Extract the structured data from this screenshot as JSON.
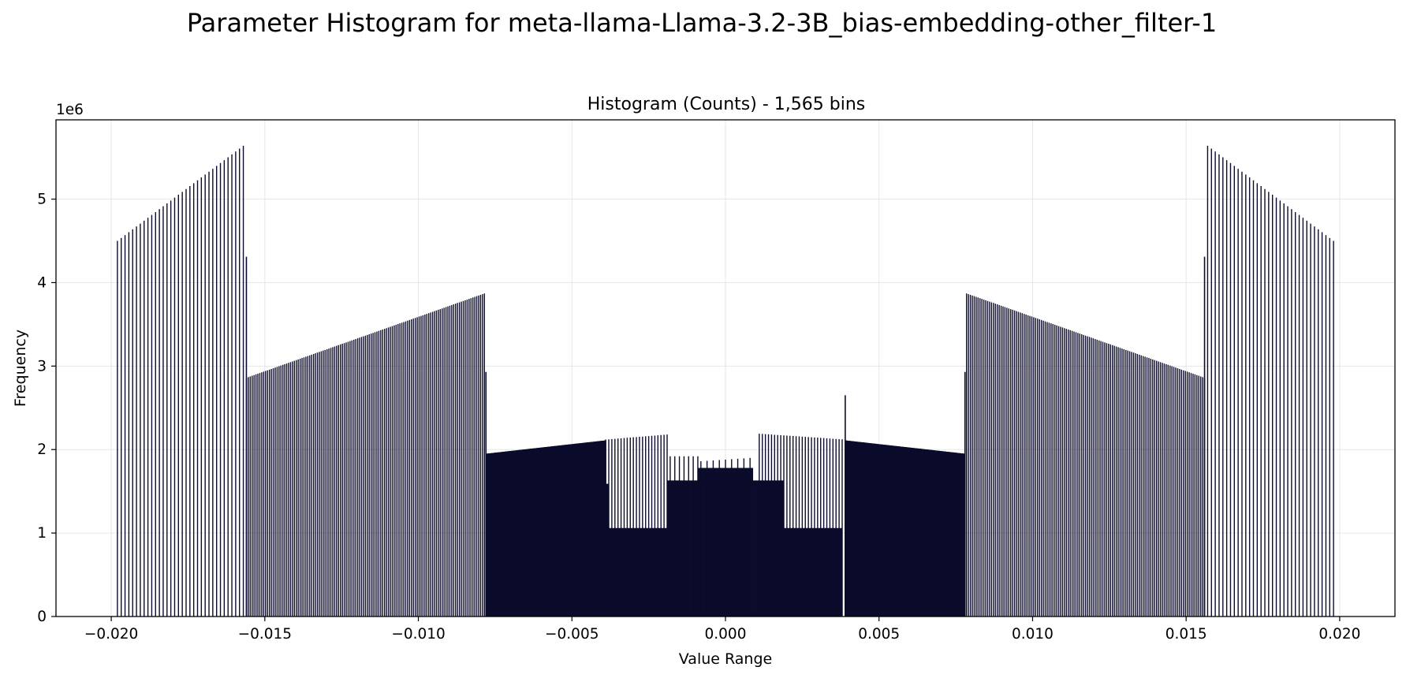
{
  "chart_data": {
    "type": "bar",
    "title": "Parameter Histogram for meta-llama-Llama-3.2-3B_bias-embedding-other_filter-1",
    "subtitle": "Histogram (Counts) - 1,565 bins",
    "xlabel": "Value Range",
    "ylabel": "Frequency",
    "y_offset_label": "1e6",
    "xlim": [
      -0.0218,
      0.0218
    ],
    "ylim": [
      0,
      5950000
    ],
    "x_ticks": [
      -0.02,
      -0.015,
      -0.01,
      -0.005,
      0.0,
      0.005,
      0.01,
      0.015,
      0.02
    ],
    "x_tick_labels": [
      "−0.020",
      "−0.015",
      "−0.010",
      "−0.005",
      "0.000",
      "0.005",
      "0.010",
      "0.015",
      "0.020"
    ],
    "y_ticks": [
      0,
      1000000,
      2000000,
      3000000,
      4000000,
      5000000
    ],
    "y_tick_labels": [
      "0",
      "1",
      "2",
      "3",
      "4",
      "5"
    ],
    "grid": true,
    "bar_color": "#0b0b2b",
    "segments": [
      {
        "x_start": -0.0198,
        "x_end": -0.0157,
        "y_start": 4500000,
        "y_end": 5640000,
        "step": 0.000125
      },
      {
        "x_start": -0.0156,
        "x_end": -0.00785,
        "y_start": 2860000,
        "y_end": 3870000,
        "step": 6.25e-05
      },
      {
        "x_start": -0.0078,
        "x_end": -0.0039,
        "y_start": 1950000,
        "y_end": 2110000,
        "step": 3.125e-05
      },
      {
        "x_start": -0.0039,
        "x_end": -0.0019,
        "y_start": 2120000,
        "y_end": 2180000,
        "step": 0.0001
      },
      {
        "x_start": -0.0018,
        "x_end": -0.0009,
        "y_start": 1920000,
        "y_end": 1920000,
        "step": 0.00015
      },
      {
        "x_start": -0.0008,
        "x_end": 0.0008,
        "y_start": 1860000,
        "y_end": 1900000,
        "step": 0.0002
      },
      {
        "x_start": 0.0011,
        "x_end": 0.0039,
        "y_start": 2190000,
        "y_end": 2120000,
        "step": 0.0001
      },
      {
        "x_start": 0.0039,
        "x_end": 0.0078,
        "y_start": 2110000,
        "y_end": 1950000,
        "step": 3.125e-05
      },
      {
        "x_start": 0.00785,
        "x_end": 0.0156,
        "y_start": 3870000,
        "y_end": 2860000,
        "step": 6.25e-05
      },
      {
        "x_start": 0.0157,
        "x_end": 0.0198,
        "y_start": 5640000,
        "y_end": 4500000,
        "step": 0.000125
      }
    ],
    "special_bars": [
      {
        "x": -0.0156,
        "y": 4310000
      },
      {
        "x": 0.0156,
        "y": 4310000
      },
      {
        "x": -0.0078,
        "y": 2930000
      },
      {
        "x": 0.0078,
        "y": 2930000
      },
      {
        "x": 0.0039,
        "y": 2650000
      },
      {
        "x": -0.0039,
        "y": 1590000
      }
    ],
    "filled_regions": [
      {
        "x_start": -0.0078,
        "x_end": 0.0078,
        "y": 0
      },
      {
        "x_start": -0.0038,
        "x_end": 0.0038,
        "y": 1060000
      },
      {
        "x_start": -0.0009,
        "x_end": 0.0009,
        "y": 1780000
      },
      {
        "x_start": -0.0019,
        "x_end": 0.0019,
        "y": 1630000
      },
      {
        "x_start": -0.0039,
        "x_end": -0.0038,
        "y": 1590000
      }
    ]
  }
}
